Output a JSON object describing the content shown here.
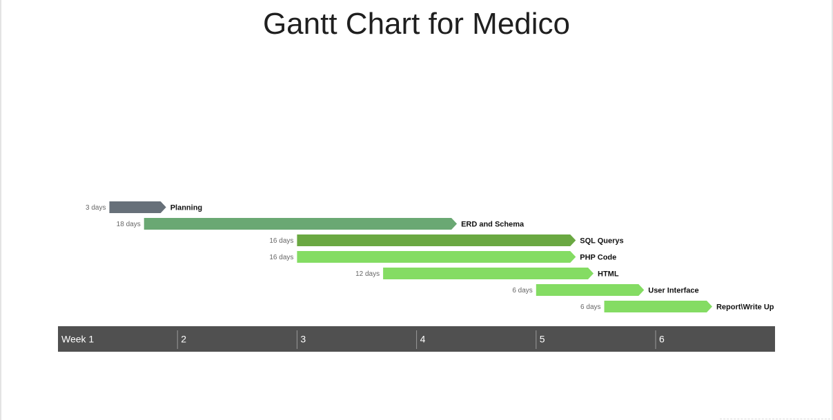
{
  "title": "Gantt Chart for Medico",
  "chart_data": {
    "type": "gantt",
    "title": "Gantt Chart for Medico",
    "duration_unit": "days",
    "axis": {
      "unit": "week",
      "ticks": [
        "Week 1",
        "2",
        "3",
        "4",
        "5",
        "6"
      ],
      "range_weeks": [
        1,
        7
      ]
    },
    "tasks": [
      {
        "name": "Planning",
        "start_week": 1.43,
        "duration_days": 3,
        "duration_label": "3 days",
        "color": "#677079"
      },
      {
        "name": "ERD and Schema",
        "start_week": 1.72,
        "duration_days": 18,
        "duration_label": "18 days",
        "color": "#6aa873"
      },
      {
        "name": "SQL Querys",
        "start_week": 3.0,
        "duration_days": 16,
        "duration_label": "16 days",
        "color": "#6aa842"
      },
      {
        "name": "PHP Code",
        "start_week": 3.0,
        "duration_days": 16,
        "duration_label": "16 days",
        "color": "#84dc63"
      },
      {
        "name": "HTML",
        "start_week": 3.72,
        "duration_days": 12,
        "duration_label": "12 days",
        "color": "#84dc63"
      },
      {
        "name": "User Interface",
        "start_week": 5.0,
        "duration_days": 6,
        "duration_label": "6 days",
        "color": "#84dc63"
      },
      {
        "name": "Report\\Write Up",
        "start_week": 5.57,
        "duration_days": 6,
        "duration_label": "6 days",
        "color": "#84dc63"
      }
    ],
    "timeline_color": "#505050"
  }
}
